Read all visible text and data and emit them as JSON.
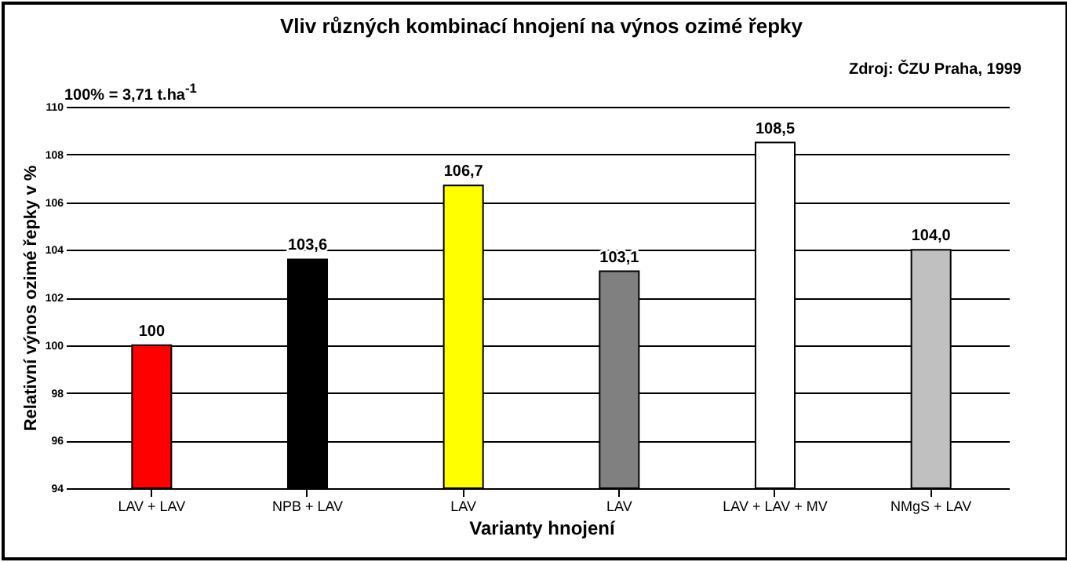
{
  "chart_data": {
    "type": "bar",
    "title": "Vliv různých kombinací hnojení na výnos ozimé řepky",
    "xlabel": "Varianty hnojení",
    "ylabel": "Relativní výnos ozimé řepky v %",
    "annotations": [
      "100% = 3,71 t.ha$^{-1}$",
      "Zdroj: ČZU Praha, 1999"
    ],
    "categories": [
      "LAV + LAV",
      "NPB + LAV",
      "LAV",
      "LAV",
      "LAV + LAV + MV",
      "NMgS + LAV"
    ],
    "values": [
      100,
      103.6,
      106.7,
      103.1,
      108.5,
      104.0
    ],
    "value_labels": [
      "100",
      "103,6",
      "106,7",
      "103,1",
      "108,5",
      "104,0"
    ],
    "colors": [
      "#ff0000",
      "#000000",
      "#ffff00",
      "#808080",
      "#ffffff",
      "#c0c0c0"
    ],
    "ylim": [
      94,
      110
    ],
    "yticks": [
      94,
      96,
      98,
      100,
      102,
      104,
      106,
      108,
      110
    ],
    "grid": "y"
  }
}
